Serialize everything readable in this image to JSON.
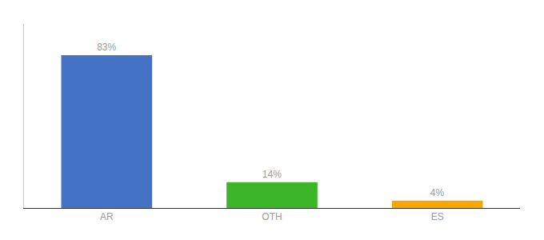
{
  "chart_data": {
    "type": "bar",
    "categories": [
      "AR",
      "OTH",
      "ES"
    ],
    "values": [
      83,
      14,
      4
    ],
    "value_labels": [
      "83%",
      "14%",
      "4%"
    ],
    "data_labels": true,
    "colors": [
      "#4472c4",
      "#3cb528",
      "#f5a800"
    ],
    "ylim": [
      0,
      100
    ],
    "grid": false,
    "tick_labels": "x"
  }
}
